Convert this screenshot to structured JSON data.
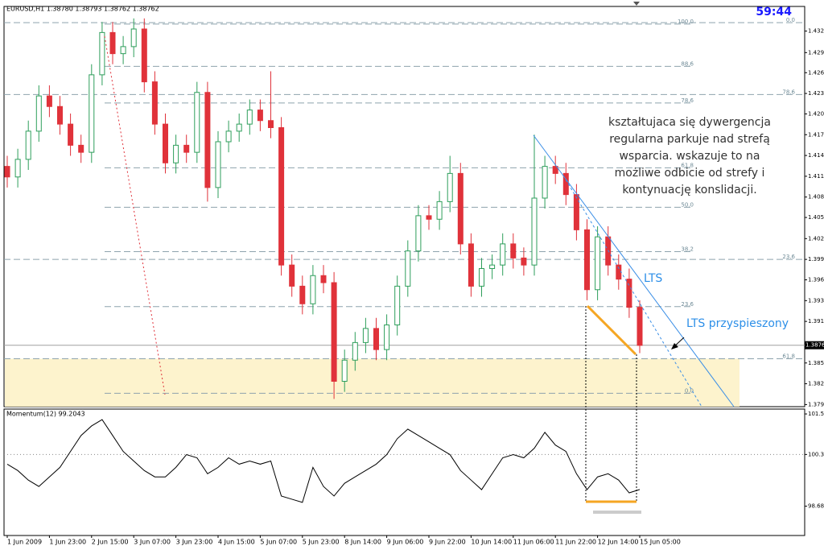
{
  "chart_data": [
    {
      "type": "candlestick",
      "title": "EURUSD,H1 1.38780 1.38793 1.38762 1.38762",
      "timer": "59:44",
      "current_price": 1.38762,
      "up_color": "#2e9e5b",
      "down_color": "#e0323a",
      "categories": [
        "1 Jun 2009",
        null,
        null,
        null,
        "1 Jun 23:00",
        null,
        null,
        null,
        "2 Jun 15:00",
        null,
        null,
        null,
        "3 Jun 07:00",
        null,
        null,
        null,
        "3 Jun 23:00",
        null,
        null,
        null,
        "4 Jun 15:00",
        null,
        null,
        null,
        "5 Jun 07:00",
        null,
        null,
        null,
        "5 Jun 23:00",
        null,
        null,
        null,
        "8 Jun 14:00",
        null,
        null,
        null,
        "9 Jun 06:00",
        null,
        null,
        null,
        "9 Jun 22:00",
        null,
        null,
        null,
        "10 Jun 14:00",
        null,
        null,
        null,
        "11 Jun 06:00",
        null,
        null,
        null,
        "11 Jun 22:00",
        null,
        null,
        null,
        "12 Jun 14:00",
        null,
        null,
        null,
        "15 Jun 05:00"
      ],
      "open": [
        1.413,
        1.4115,
        1.414,
        1.418,
        1.423,
        1.4215,
        1.419,
        1.416,
        1.415,
        1.426,
        1.432,
        1.429,
        1.43,
        1.4325,
        1.425,
        1.419,
        1.4135,
        1.416,
        1.415,
        1.4235,
        1.41,
        1.4165,
        1.418,
        1.419,
        1.421,
        1.4195,
        1.4185,
        1.399,
        1.396,
        1.3935,
        1.3975,
        1.3965,
        1.3825,
        1.3855,
        1.388,
        1.39,
        1.387,
        1.3905,
        1.396,
        1.401,
        1.406,
        1.4055,
        1.408,
        1.412,
        1.402,
        1.396,
        1.3985,
        1.399,
        1.402,
        1.4,
        1.399,
        1.4085,
        1.413,
        1.412,
        1.409,
        1.404,
        1.3955,
        1.403,
        1.399,
        1.397,
        1.393
      ],
      "high": [
        1.4145,
        1.4155,
        1.4195,
        1.4245,
        1.4245,
        1.423,
        1.4205,
        1.4175,
        1.4275,
        1.4335,
        1.4335,
        1.4315,
        1.434,
        1.434,
        1.4265,
        1.4205,
        1.4175,
        1.4175,
        1.425,
        1.425,
        1.418,
        1.4195,
        1.4205,
        1.4225,
        1.4225,
        1.4265,
        1.42,
        1.4005,
        1.3975,
        1.399,
        1.399,
        1.398,
        1.387,
        1.3895,
        1.3915,
        1.3915,
        1.392,
        1.3975,
        1.4025,
        1.4075,
        1.4075,
        1.4095,
        1.4145,
        1.4135,
        1.4035,
        1.4,
        1.4005,
        1.4035,
        1.4035,
        1.4015,
        1.4175,
        1.4145,
        1.4145,
        1.4135,
        1.4105,
        1.4055,
        1.4045,
        1.4045,
        1.4005,
        1.3985,
        1.394
      ],
      "low": [
        1.41,
        1.41,
        1.4125,
        1.4165,
        1.42,
        1.4175,
        1.4145,
        1.4135,
        1.4135,
        1.4245,
        1.4275,
        1.4275,
        1.4285,
        1.4235,
        1.4175,
        1.412,
        1.412,
        1.4135,
        1.4135,
        1.408,
        1.4085,
        1.415,
        1.4165,
        1.4175,
        1.418,
        1.417,
        1.3975,
        1.3945,
        1.392,
        1.392,
        1.395,
        1.38,
        1.381,
        1.384,
        1.3865,
        1.3855,
        1.3855,
        1.389,
        1.3945,
        1.3995,
        1.404,
        1.404,
        1.4065,
        1.4005,
        1.3945,
        1.3945,
        1.397,
        1.3975,
        1.3985,
        1.3975,
        1.3975,
        1.407,
        1.4105,
        1.4075,
        1.4025,
        1.394,
        1.394,
        1.3975,
        1.3955,
        1.3915,
        1.3865
      ],
      "close": [
        1.4115,
        1.414,
        1.418,
        1.423,
        1.4215,
        1.419,
        1.416,
        1.415,
        1.426,
        1.432,
        1.429,
        1.43,
        1.4325,
        1.425,
        1.419,
        1.4135,
        1.416,
        1.415,
        1.4235,
        1.41,
        1.4165,
        1.418,
        1.419,
        1.421,
        1.4195,
        1.4185,
        1.399,
        1.396,
        1.3935,
        1.3975,
        1.3965,
        1.3825,
        1.3855,
        1.388,
        1.39,
        1.387,
        1.3905,
        1.396,
        1.401,
        1.406,
        1.4055,
        1.408,
        1.412,
        1.402,
        1.396,
        1.3985,
        1.399,
        1.402,
        1.4,
        1.399,
        1.4085,
        1.413,
        1.412,
        1.409,
        1.404,
        1.3955,
        1.403,
        1.399,
        1.397,
        1.393,
        1.3876
      ],
      "ylim": [
        1.3789,
        1.4357
      ],
      "yticks": [
        {
          "value": 1.4322,
          "label": "1.43220"
        },
        {
          "value": 1.42915,
          "label": "1.42915"
        },
        {
          "value": 1.4263,
          "label": "1.42630"
        },
        {
          "value": 1.42335,
          "label": "1.42335"
        },
        {
          "value": 1.42045,
          "label": "1.42045"
        },
        {
          "value": 1.4175,
          "label": "1.41750"
        },
        {
          "value": 1.41455,
          "label": "1.41455"
        },
        {
          "value": 1.4116,
          "label": "1.41160"
        },
        {
          "value": 1.40865,
          "label": "1.40865"
        },
        {
          "value": 1.40575,
          "label": "1.40575"
        },
        {
          "value": 1.40275,
          "label": "1.40275"
        },
        {
          "value": 1.3998,
          "label": "1.39980"
        },
        {
          "value": 1.3969,
          "label": "1.39690"
        },
        {
          "value": 1.39395,
          "label": "1.39395"
        },
        {
          "value": 1.391,
          "label": "1.39100"
        },
        {
          "value": 1.3851,
          "label": "1.38510"
        },
        {
          "value": 1.38215,
          "label": "1.38215"
        },
        {
          "value": 1.3792,
          "label": "1.37920"
        }
      ],
      "fib_left": [
        {
          "label": "100.0",
          "value": 1.4332
        },
        {
          "label": "88.6",
          "value": 1.4272
        },
        {
          "label": "78.6",
          "value": 1.422
        },
        {
          "label": "61.8",
          "value": 1.4128
        },
        {
          "label": "50.0",
          "value": 1.4072
        },
        {
          "label": "38.2",
          "value": 1.4009
        },
        {
          "label": "23.6",
          "value": 1.3931
        },
        {
          "label": "0.0",
          "value": 1.3808
        }
      ],
      "fib_right": [
        {
          "label": "0.0",
          "value": 1.4334
        },
        {
          "label": "78.6",
          "value": 1.4232
        },
        {
          "label": "23.6",
          "value": 1.3998
        },
        {
          "label": "61.8",
          "value": 1.3857
        }
      ],
      "annotation": [
        "kształtujaca się dywergencja",
        "regularna parkuje nad strefą",
        "wsparcia. wskazuje to na",
        "możliwe odbicie od strefy i",
        "kontynuację konslidacji."
      ],
      "label_lts": "LTS",
      "label_lts_fast": "LTS przyspieszony"
    },
    {
      "type": "line",
      "title": "Momentum(12) 99.2043",
      "color": "#000000",
      "values": [
        100.0,
        99.8,
        99.5,
        99.3,
        99.6,
        99.9,
        100.4,
        100.9,
        101.2,
        101.4,
        100.9,
        100.4,
        100.1,
        99.8,
        99.6,
        99.6,
        99.9,
        100.3,
        100.2,
        99.7,
        99.9,
        100.2,
        100.0,
        100.1,
        100.0,
        100.1,
        99.0,
        98.9,
        98.8,
        99.9,
        99.3,
        99.0,
        99.4,
        99.6,
        99.8,
        100.0,
        100.3,
        100.8,
        101.1,
        100.9,
        100.7,
        100.5,
        100.3,
        99.8,
        99.5,
        99.2,
        99.7,
        100.2,
        100.3,
        100.2,
        100.5,
        101.0,
        100.6,
        100.4,
        99.7,
        99.2,
        99.6,
        99.7,
        99.5,
        99.1,
        99.2043
      ],
      "ylim": [
        97.76,
        101.73
      ],
      "yticks": [
        101.5772,
        100.3048,
        98.6805
      ],
      "level": 100.3048
    }
  ]
}
